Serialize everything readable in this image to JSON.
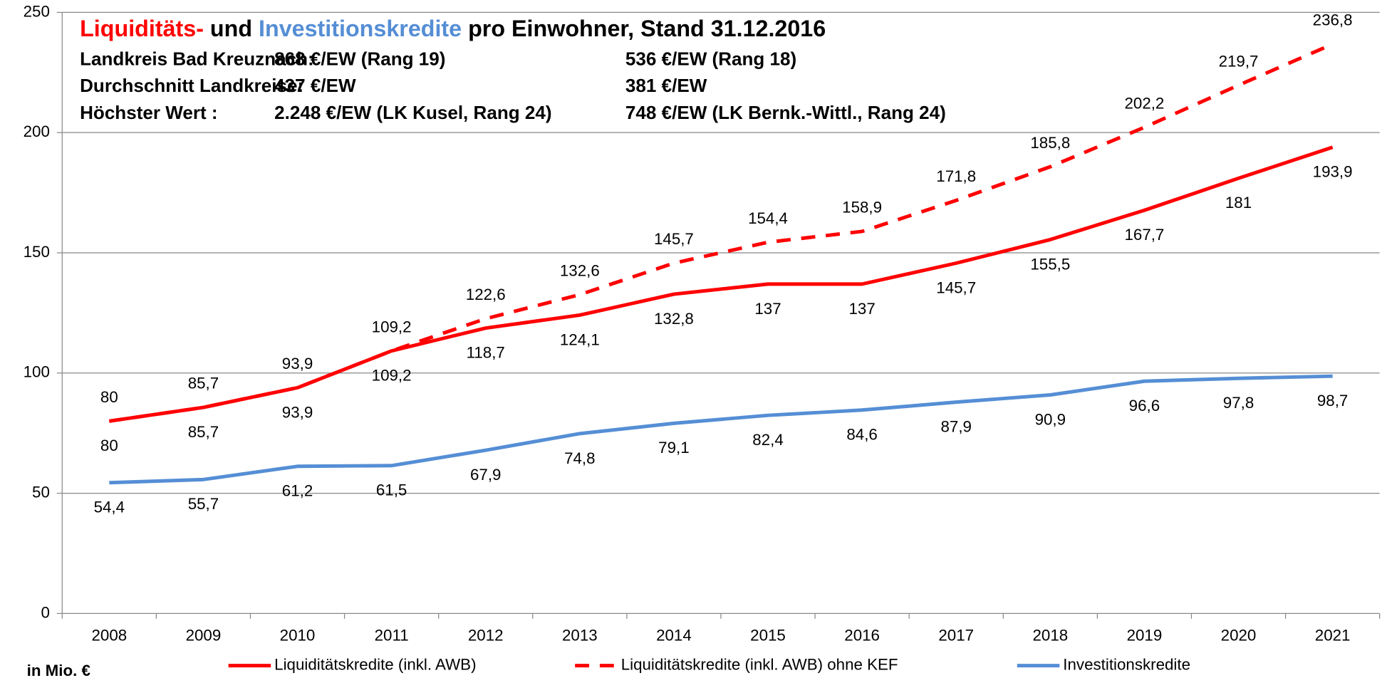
{
  "chart_data": {
    "type": "line",
    "title_parts": [
      {
        "text": "Liquiditäts-",
        "color": "#ff0000"
      },
      {
        "text": " und ",
        "color": "#000000"
      },
      {
        "text": "Investitionskredite",
        "color": "#558ed5"
      },
      {
        "text": " pro Einwohner, Stand 31.12.2016",
        "color": "#000000"
      }
    ],
    "info_rows": [
      {
        "label": "Landkreis Bad Kreuznach:",
        "red": "868 €/EW (Rang 19)",
        "blue": "536 €/EW (Rang 18)"
      },
      {
        "label": "Durchschnitt Landkreise:",
        "red": "437 €/EW",
        "blue": "381 €/EW"
      },
      {
        "label": "Höchster Wert :",
        "red": "2.248 €/EW (LK Kusel, Rang 24)",
        "blue": "748 €/EW (LK Bernk.-Wittl., Rang 24)"
      }
    ],
    "ylabel": "in Mio. €",
    "categories": [
      "2008",
      "2009",
      "2010",
      "2011",
      "2012",
      "2013",
      "2014",
      "2015",
      "2016",
      "2017",
      "2018",
      "2019",
      "2020",
      "2021"
    ],
    "series": [
      {
        "name": "Liquiditätskredite (inkl. AWB)",
        "color": "#ff0000",
        "dash": false,
        "label_position": "below",
        "values": [
          80,
          85.7,
          93.9,
          109.2,
          118.7,
          124.1,
          132.8,
          137,
          137,
          145.7,
          155.5,
          167.7,
          181,
          193.9
        ],
        "value_labels": [
          "80",
          "85,7",
          "93,9",
          "109,2",
          "118,7",
          "124,1",
          "132,8",
          "137",
          "137",
          "145,7",
          "155,5",
          "167,7",
          "181",
          "193,9"
        ]
      },
      {
        "name": "Liquiditätskredite (inkl. AWB) ohne KEF",
        "color": "#ff0000",
        "dash": true,
        "label_position": "above",
        "values": [
          80,
          85.7,
          93.9,
          109.2,
          122.6,
          132.6,
          145.7,
          154.4,
          158.9,
          171.8,
          185.8,
          202.2,
          219.7,
          236.8
        ],
        "value_labels": [
          "80",
          "85,7",
          "93,9",
          "109,2",
          "122,6",
          "132,6",
          "145,7",
          "154,4",
          "158,9",
          "171,8",
          "185,8",
          "202,2",
          "219,7",
          "236,8"
        ]
      },
      {
        "name": "Investitionskredite",
        "color": "#558ed5",
        "dash": false,
        "label_position": "below",
        "values": [
          54.4,
          55.7,
          61.2,
          61.5,
          67.9,
          74.8,
          79.1,
          82.4,
          84.6,
          87.9,
          90.9,
          96.6,
          97.8,
          98.7
        ],
        "value_labels": [
          "54,4",
          "55,7",
          "61,2",
          "61,5",
          "67,9",
          "74,8",
          "79,1",
          "82,4",
          "84,6",
          "87,9",
          "90,9",
          "96,6",
          "97,8",
          "98,7"
        ]
      }
    ],
    "ylim": [
      0,
      250
    ],
    "yticks": [
      0,
      50,
      100,
      150,
      200,
      250
    ],
    "grid": true
  }
}
